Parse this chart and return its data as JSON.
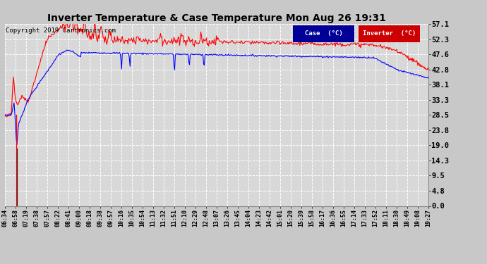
{
  "title": "Inverter Temperature & Case Temperature Mon Aug 26 19:31",
  "copyright": "Copyright 2019 Cartronics.com",
  "background_color": "#c8c8c8",
  "plot_background": "#d8d8d8",
  "grid_color": "#ffffff",
  "yticks": [
    0.0,
    4.8,
    9.5,
    14.3,
    19.0,
    23.8,
    28.5,
    33.3,
    38.1,
    42.8,
    47.6,
    52.3,
    57.1
  ],
  "ymin": 0.0,
  "ymax": 57.1,
  "legend_case_label": "Case  (°C)",
  "legend_inv_label": "Inverter  (°C)",
  "case_color": "#0000ff",
  "inverter_color": "#ff0000",
  "legend_case_bg": "#000099",
  "legend_inv_bg": "#cc0000",
  "x_labels": [
    "06:34",
    "06:58",
    "07:19",
    "07:38",
    "07:57",
    "08:22",
    "08:41",
    "09:00",
    "09:18",
    "09:38",
    "09:57",
    "10:16",
    "10:35",
    "10:54",
    "11:13",
    "11:32",
    "11:51",
    "12:10",
    "12:29",
    "12:48",
    "13:07",
    "13:26",
    "13:45",
    "14:04",
    "14:23",
    "14:42",
    "15:01",
    "15:20",
    "15:39",
    "15:58",
    "16:17",
    "16:36",
    "16:55",
    "17:14",
    "17:33",
    "17:52",
    "18:11",
    "18:30",
    "18:49",
    "19:08",
    "19:27"
  ],
  "n_points": 600
}
